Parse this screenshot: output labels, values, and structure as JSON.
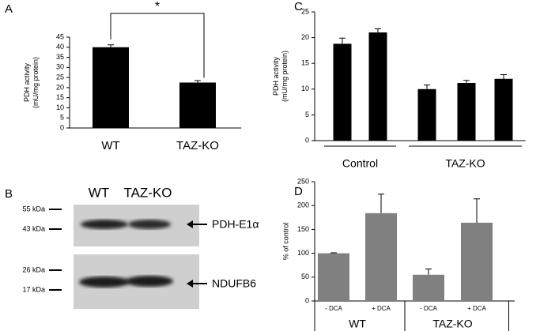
{
  "chart_data": [
    {
      "type": "bar",
      "panel": "A",
      "ylabel": [
        "PDH activity",
        "(mU/mg protein)"
      ],
      "categories": [
        "WT",
        "TAZ-KO"
      ],
      "values": [
        40,
        22.5
      ],
      "errors": [
        1.2,
        1
      ],
      "color": "#000000",
      "ylim": [
        0,
        45
      ],
      "yticks": [
        0,
        5,
        10,
        15,
        20,
        25,
        30,
        35,
        40,
        45
      ],
      "annotation": "*"
    },
    {
      "type": "bar",
      "panel": "C",
      "ylabel": [
        "PDH activity",
        "(mU/mg protein)"
      ],
      "categories": [
        null,
        null,
        null,
        null,
        null
      ],
      "values": [
        18.8,
        21,
        10,
        11.2,
        12
      ],
      "errors": [
        1.1,
        0.7,
        0.8,
        0.5,
        0.8
      ],
      "color": "#000000",
      "groups": [
        {
          "label": "Control",
          "count": 2
        },
        {
          "label": "TAZ-KO",
          "count": 3
        }
      ],
      "ylim": [
        0,
        25
      ],
      "yticks": [
        0,
        5,
        10,
        15,
        20,
        25
      ]
    },
    {
      "type": "bar",
      "panel": "D",
      "ylabel": [
        "% of control"
      ],
      "categories": [
        "- DCA",
        "+ DCA",
        "- DCA",
        "+ DCA"
      ],
      "values": [
        100,
        184,
        55,
        164
      ],
      "errors": [
        1,
        40,
        12,
        50
      ],
      "color": "#808080",
      "groups": [
        {
          "label": "WT",
          "count": 2
        },
        {
          "label": "TAZ-KO",
          "count": 2
        }
      ],
      "ylim": [
        0,
        250
      ],
      "yticks": [
        0,
        50,
        100,
        150,
        200,
        250
      ]
    }
  ],
  "blot": {
    "panel": "B",
    "lanes": [
      "WT",
      "TAZ-KO"
    ],
    "markers": [
      "55 kDa",
      "43 kDa",
      "26 kDa",
      "17 kDa"
    ],
    "proteins": [
      "PDH-E1α",
      "NDUFB6"
    ]
  }
}
